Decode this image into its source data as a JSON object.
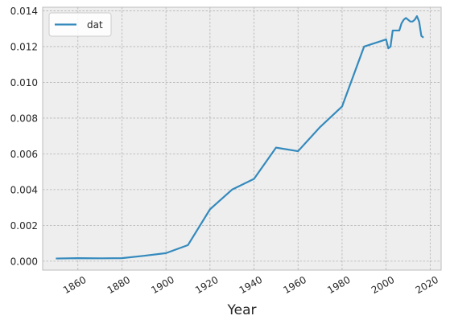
{
  "chart_data": {
    "type": "line",
    "title": "",
    "xlabel": "Year",
    "ylabel": "",
    "xlim": [
      1844,
      2025
    ],
    "ylim": [
      -0.0005,
      0.0142
    ],
    "grid": true,
    "legend_position": "top-left",
    "x_ticks": [
      1860,
      1880,
      1900,
      1920,
      1940,
      1960,
      1980,
      2000,
      2020
    ],
    "x_tick_labels": [
      "1860",
      "1880",
      "1900",
      "1920",
      "1940",
      "1960",
      "1980",
      "2000",
      "2020"
    ],
    "y_ticks": [
      0.0,
      0.002,
      0.004,
      0.006,
      0.008,
      0.01,
      0.012,
      0.014
    ],
    "y_tick_labels": [
      "0.000",
      "0.002",
      "0.004",
      "0.006",
      "0.008",
      "0.010",
      "0.012",
      "0.014"
    ],
    "colors": {
      "series": "#348abd",
      "plot_background": "#eeeeee",
      "grid": "#b2b2b2",
      "axes_edge": "#bcbcbc"
    },
    "series": [
      {
        "name": "dat",
        "x": [
          1850,
          1860,
          1870,
          1880,
          1890,
          1900,
          1910,
          1920,
          1930,
          1940,
          1950,
          1960,
          1970,
          1980,
          1990,
          2000,
          2001,
          2002,
          2003,
          2004,
          2005,
          2006,
          2007,
          2008,
          2009,
          2010,
          2011,
          2012,
          2013,
          2014,
          2015,
          2016,
          2017
        ],
        "values": [
          0.00015,
          0.00017,
          0.00016,
          0.00017,
          0.0003,
          0.00045,
          0.0009,
          0.0029,
          0.004,
          0.0046,
          0.00635,
          0.00615,
          0.0075,
          0.00865,
          0.012,
          0.0124,
          0.0119,
          0.012,
          0.0129,
          0.0129,
          0.0129,
          0.0129,
          0.0133,
          0.0135,
          0.0136,
          0.0135,
          0.0134,
          0.0134,
          0.0135,
          0.0137,
          0.0134,
          0.0126,
          0.0125
        ]
      }
    ]
  }
}
